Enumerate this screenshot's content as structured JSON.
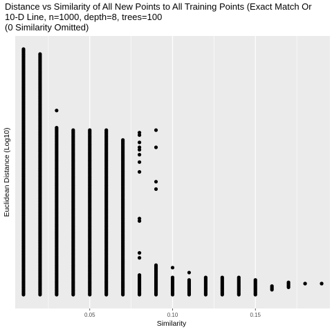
{
  "chart_data": {
    "type": "scatter",
    "title_lines": [
      "Distance vs Similarity of All New Points to All Training Points (Exact Match Or",
      "10-D Line, n=1000, depth=8, trees=100",
      "(0 Similarity Omitted)"
    ],
    "xlabel": "Similarity",
    "ylabel": "Euclidean Distance (Log10)",
    "xlim": [
      0.005,
      0.195
    ],
    "ylim": [
      0,
      1
    ],
    "x_ticks": [
      0.05,
      0.1,
      0.15
    ],
    "x_tick_labels": [
      "0.05",
      "0.10",
      "0.15"
    ],
    "y_ticks_labeled": false,
    "grid": true,
    "background": "#ebebeb",
    "gridline_color": "#ffffff",
    "point_color": "#000000",
    "columns": [
      {
        "x": 0.01,
        "y_min": 0.0,
        "y_max": 1.0,
        "extra_points": []
      },
      {
        "x": 0.02,
        "y_min": 0.0,
        "y_max": 0.98,
        "extra_points": []
      },
      {
        "x": 0.03,
        "y_min": 0.0,
        "y_max": 0.68,
        "extra_points": [
          0.75
        ]
      },
      {
        "x": 0.04,
        "y_min": 0.0,
        "y_max": 0.67,
        "extra_points": []
      },
      {
        "x": 0.05,
        "y_min": 0.0,
        "y_max": 0.67,
        "extra_points": []
      },
      {
        "x": 0.06,
        "y_min": 0.0,
        "y_max": 0.67,
        "extra_points": []
      },
      {
        "x": 0.07,
        "y_min": 0.0,
        "y_max": 0.63,
        "extra_points": []
      },
      {
        "x": 0.08,
        "y_min": 0.0,
        "y_max": 0.08,
        "extra_points": [
          0.15,
          0.17,
          0.3,
          0.31,
          0.5,
          0.54,
          0.57,
          0.59,
          0.6,
          0.62,
          0.65,
          0.66
        ]
      },
      {
        "x": 0.09,
        "y_min": 0.0,
        "y_max": 0.12,
        "extra_points": [
          0.43,
          0.46,
          0.6,
          0.67
        ]
      },
      {
        "x": 0.1,
        "y_min": 0.0,
        "y_max": 0.07,
        "extra_points": [
          0.11
        ]
      },
      {
        "x": 0.11,
        "y_min": 0.0,
        "y_max": 0.06,
        "extra_points": [
          0.09
        ]
      },
      {
        "x": 0.12,
        "y_min": 0.0,
        "y_max": 0.07,
        "extra_points": []
      },
      {
        "x": 0.13,
        "y_min": 0.0,
        "y_max": 0.07,
        "extra_points": []
      },
      {
        "x": 0.14,
        "y_min": 0.0,
        "y_max": 0.07,
        "extra_points": []
      },
      {
        "x": 0.15,
        "y_min": 0.0,
        "y_max": 0.06,
        "extra_points": []
      },
      {
        "x": 0.16,
        "y_min": 0.02,
        "y_max": 0.035,
        "extra_points": []
      },
      {
        "x": 0.17,
        "y_min": 0.03,
        "y_max": 0.05,
        "extra_points": []
      },
      {
        "x": 0.18,
        "y_min": 0.045,
        "y_max": 0.045,
        "extra_points": []
      },
      {
        "x": 0.19,
        "y_min": 0.045,
        "y_max": 0.045,
        "extra_points": []
      }
    ]
  }
}
